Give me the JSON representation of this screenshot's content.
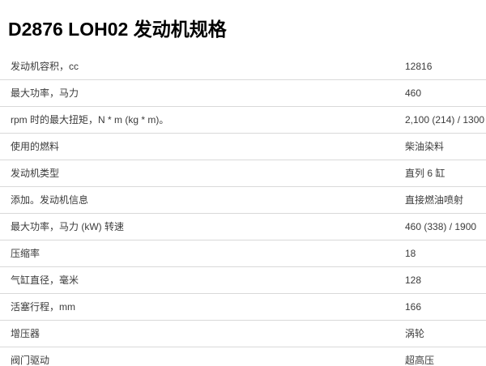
{
  "page": {
    "title": "D2876 LOH02 发动机规格"
  },
  "colors": {
    "row_border": "#d9d9d9",
    "row_text": "#3b3b3b",
    "title_text": "#000000",
    "background": "#ffffff"
  },
  "table": {
    "rows": [
      {
        "label": "发动机容积，cc",
        "value": "12816"
      },
      {
        "label": "最大功率，马力",
        "value": "460"
      },
      {
        "label": "rpm 时的最大扭矩，N * m (kg * m)。",
        "value": "2,100 (214) / 1300"
      },
      {
        "label": "使用的燃料",
        "value": "柴油染料"
      },
      {
        "label": "发动机类型",
        "value": "直列 6 缸"
      },
      {
        "label": "添加。发动机信息",
        "value": "直接燃油喷射"
      },
      {
        "label": "最大功率，马力 (kW) 转速",
        "value": "460 (338) / 1900"
      },
      {
        "label": "压缩率",
        "value": "18"
      },
      {
        "label": "气缸直径，毫米",
        "value": "128"
      },
      {
        "label": "活塞行程，mm",
        "value": "166"
      },
      {
        "label": "增压器",
        "value": "涡轮"
      },
      {
        "label": "阀门驱动",
        "value": "超高压"
      }
    ]
  }
}
